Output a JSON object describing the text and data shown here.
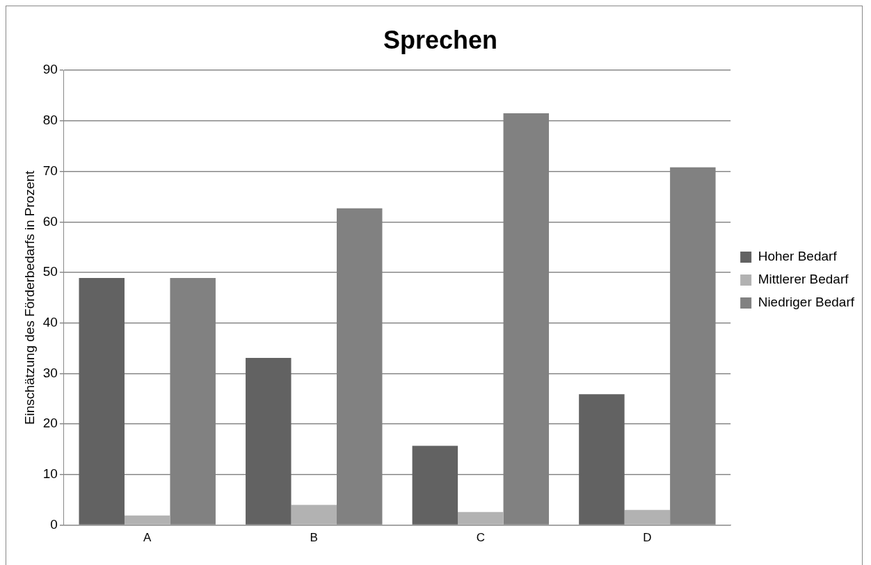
{
  "chart_data": {
    "type": "bar",
    "title": "Sprechen",
    "ylabel": "Einschätzung des Förderbedarfs in Prozent",
    "categories": [
      "A",
      "B",
      "C",
      "D"
    ],
    "series": [
      {
        "name": "Hoher Bedarf",
        "color": "#626262",
        "values": [
          48.9,
          33.1,
          15.7,
          25.9
        ]
      },
      {
        "name": "Mittlerer Bedarf",
        "color": "#b2b2b2",
        "values": [
          1.9,
          4.0,
          2.6,
          3.0
        ]
      },
      {
        "name": "Niedriger Bedarf",
        "color": "#818181",
        "values": [
          48.9,
          62.7,
          81.5,
          70.8
        ]
      }
    ],
    "ylim": [
      0,
      90
    ],
    "yticks": [
      0,
      10,
      20,
      30,
      40,
      50,
      60,
      70,
      80,
      90
    ],
    "grid": "y",
    "legend": "right"
  }
}
